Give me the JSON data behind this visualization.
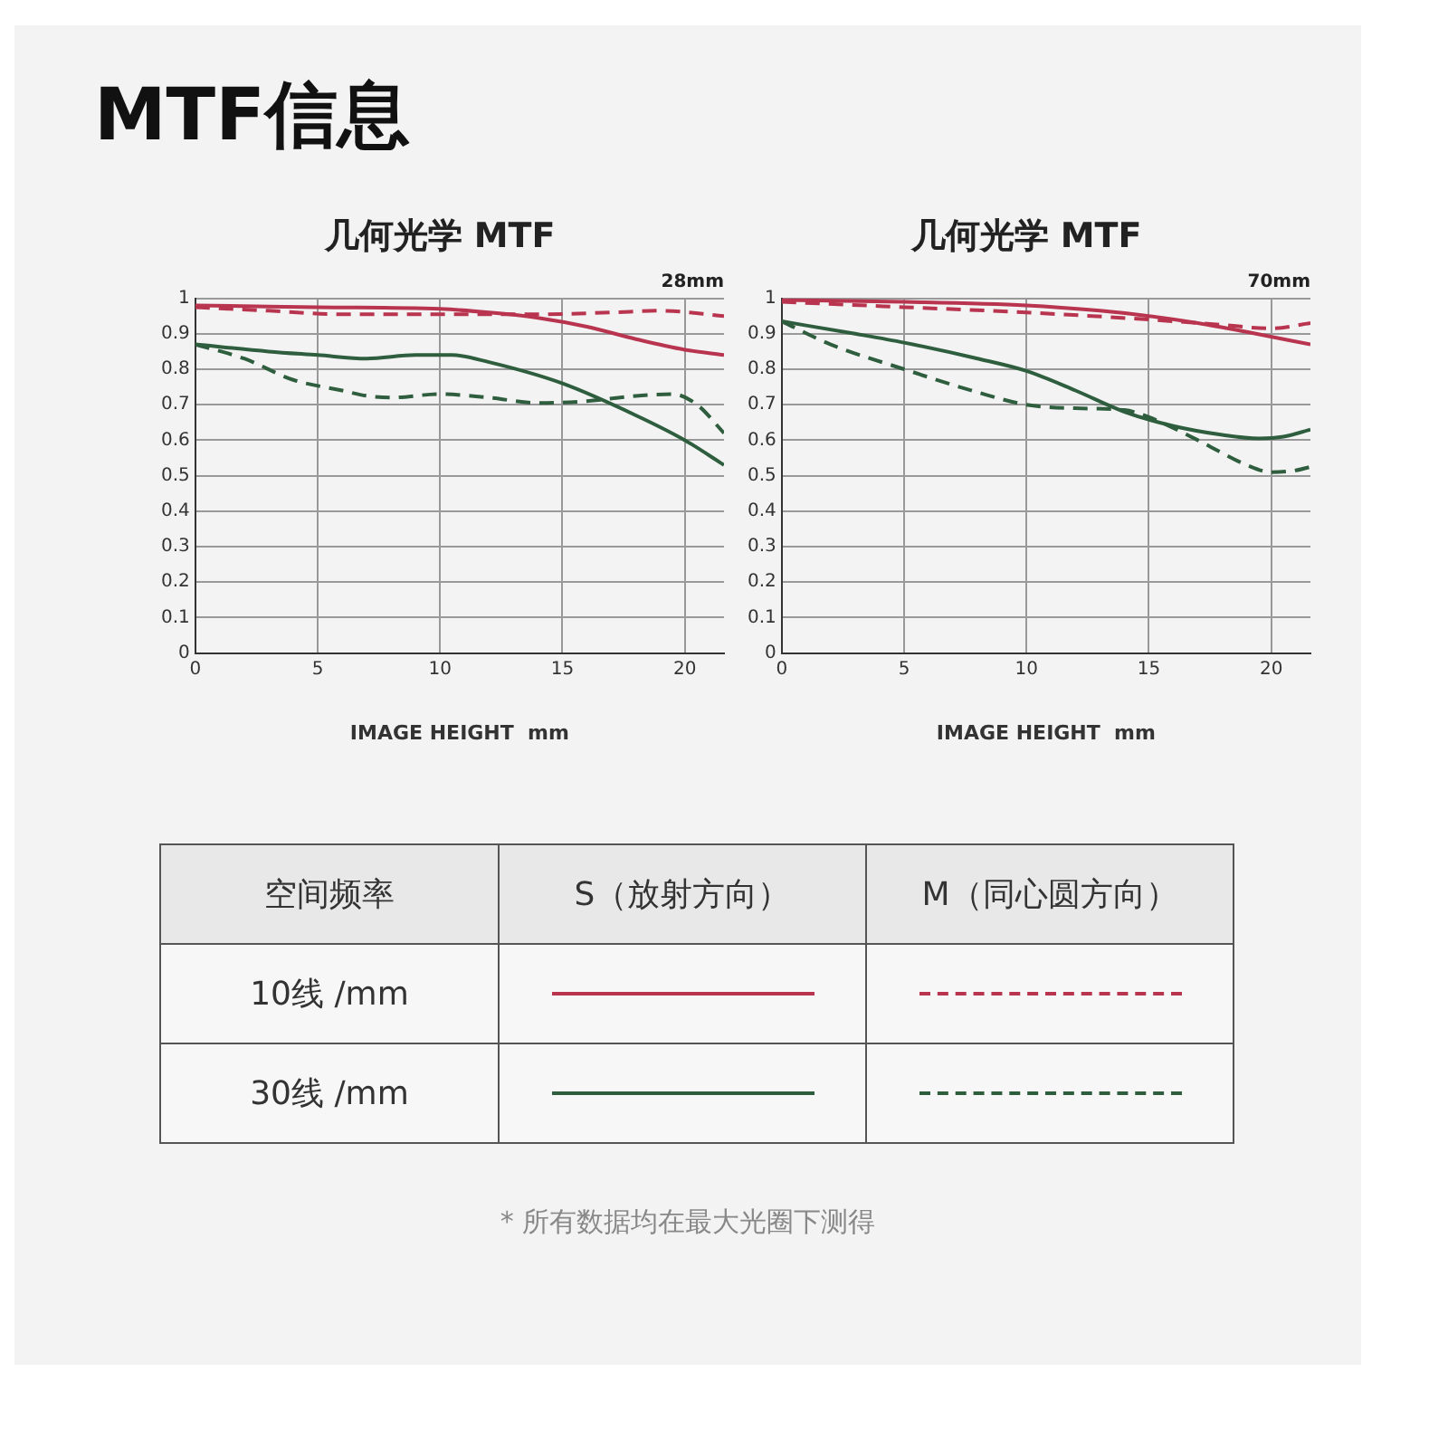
{
  "chart_data": [
    {
      "type": "other",
      "title": "MTF信息"
    },
    {
      "type": "line",
      "title": "几何光学 MTF",
      "xlabel": "IMAGE HEIGHT  mm",
      "annotations": [
        "28mm"
      ],
      "xlim": [
        0,
        21.6
      ],
      "xticks": [
        0,
        5,
        10,
        15,
        20
      ],
      "ylim": [
        0,
        1
      ],
      "yticks": [
        0,
        0.1,
        0.2,
        0.3,
        0.4,
        0.5,
        0.6,
        0.7,
        0.8,
        0.9,
        1
      ],
      "grid": true,
      "series": [
        {
          "color": "#b8344f",
          "line_style": "solid",
          "x": [
            0,
            5,
            10,
            12,
            14,
            16,
            18,
            20,
            21.6
          ],
          "values": [
            0.98,
            0.975,
            0.97,
            0.96,
            0.945,
            0.92,
            0.885,
            0.855,
            0.84
          ]
        },
        {
          "color": "#b8344f",
          "line_style": "dashed",
          "x": [
            0,
            3,
            6,
            10,
            14,
            17,
            19,
            21.6
          ],
          "values": [
            0.975,
            0.965,
            0.955,
            0.955,
            0.955,
            0.96,
            0.965,
            0.95
          ]
        },
        {
          "color": "#2e5e3e",
          "line_style": "solid",
          "x": [
            0,
            3,
            5,
            7,
            9,
            10.5,
            12,
            15,
            18,
            20,
            21.6
          ],
          "values": [
            0.87,
            0.85,
            0.84,
            0.83,
            0.84,
            0.84,
            0.82,
            0.76,
            0.67,
            0.6,
            0.53
          ]
        },
        {
          "color": "#2e5e3e",
          "line_style": "dashed",
          "x": [
            0,
            2,
            4,
            6,
            7,
            8,
            10,
            12,
            14,
            16,
            18,
            19.5,
            20.5,
            21.6
          ],
          "values": [
            0.87,
            0.83,
            0.77,
            0.74,
            0.725,
            0.72,
            0.73,
            0.72,
            0.705,
            0.71,
            0.725,
            0.73,
            0.7,
            0.62
          ]
        }
      ]
    },
    {
      "type": "line",
      "title": "几何光学 MTF",
      "xlabel": "IMAGE HEIGHT  mm",
      "annotations": [
        "70mm"
      ],
      "xlim": [
        0,
        21.6
      ],
      "xticks": [
        0,
        5,
        10,
        15,
        20
      ],
      "ylim": [
        0,
        1
      ],
      "yticks": [
        0,
        0.1,
        0.2,
        0.3,
        0.4,
        0.5,
        0.6,
        0.7,
        0.8,
        0.9,
        1
      ],
      "grid": true,
      "series": [
        {
          "color": "#b8344f",
          "line_style": "solid",
          "x": [
            0,
            5,
            10,
            13,
            15,
            17,
            19,
            21.6
          ],
          "values": [
            0.995,
            0.99,
            0.98,
            0.965,
            0.95,
            0.93,
            0.905,
            0.87
          ]
        },
        {
          "color": "#b8344f",
          "line_style": "dashed",
          "x": [
            0,
            5,
            10,
            15,
            18,
            20,
            21.6
          ],
          "values": [
            0.99,
            0.975,
            0.96,
            0.94,
            0.925,
            0.915,
            0.93
          ]
        },
        {
          "color": "#2e5e3e",
          "line_style": "solid",
          "x": [
            0,
            3,
            5,
            8,
            10,
            12,
            14,
            16,
            18,
            19.5,
            20.5,
            21.6
          ],
          "values": [
            0.935,
            0.9,
            0.875,
            0.83,
            0.795,
            0.74,
            0.68,
            0.64,
            0.615,
            0.605,
            0.61,
            0.63
          ]
        },
        {
          "color": "#2e5e3e",
          "line_style": "dashed",
          "x": [
            0,
            2,
            5,
            8,
            10,
            12,
            14,
            15,
            17,
            19,
            20,
            21,
            21.6
          ],
          "values": [
            0.935,
            0.87,
            0.8,
            0.735,
            0.7,
            0.69,
            0.685,
            0.665,
            0.6,
            0.53,
            0.51,
            0.515,
            0.525
          ]
        }
      ]
    },
    {
      "type": "other",
      "legend_title": "空间频率",
      "categories": [
        "S（放射方向）",
        "M（同心圆方向）"
      ],
      "y_categories": [
        "10线 /mm",
        "30线 /mm"
      ],
      "annotations": [
        "* 所有数据均在最大光圈下测得"
      ]
    }
  ]
}
